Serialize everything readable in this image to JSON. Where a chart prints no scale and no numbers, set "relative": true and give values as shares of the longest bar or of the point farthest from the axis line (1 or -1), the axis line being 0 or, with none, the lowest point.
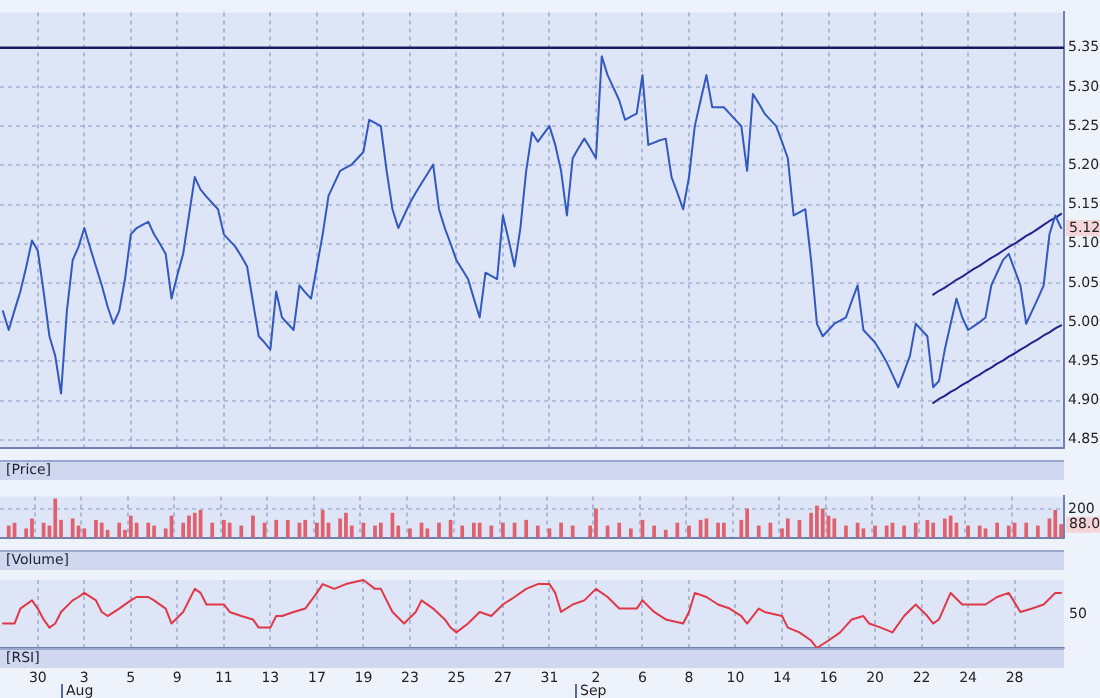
{
  "chart_data": [
    {
      "type": "line",
      "title": "[Price]",
      "categories": [
        null,
        null,
        null,
        null,
        null,
        null,
        "30",
        null,
        null,
        null,
        null,
        null,
        null,
        null,
        "3",
        null,
        null,
        null,
        null,
        null,
        null,
        null,
        "5",
        null,
        null,
        null,
        null,
        null,
        null,
        null,
        "9",
        null,
        null,
        null,
        null,
        null,
        null,
        null,
        "11",
        null,
        null,
        null,
        null,
        null,
        null,
        null,
        "13",
        null,
        null,
        null,
        null,
        null,
        null,
        null,
        "17",
        null,
        null,
        null,
        null,
        null,
        null,
        null,
        "19",
        null,
        null,
        null,
        null,
        null,
        null,
        null,
        "23",
        null,
        null,
        null,
        null,
        null,
        null,
        null,
        "25",
        null,
        null,
        null,
        null,
        null,
        null,
        null,
        "27",
        null,
        null,
        null,
        null,
        null,
        null,
        null,
        "31",
        null,
        null,
        null,
        null,
        null,
        null,
        null,
        "2",
        null,
        null,
        null,
        null,
        null,
        null,
        null,
        "6",
        null,
        null,
        null,
        null,
        null,
        null,
        null,
        "8",
        null,
        null,
        null,
        null,
        null,
        null,
        null,
        "10",
        null,
        null,
        null,
        null,
        null,
        null,
        null,
        "14",
        null,
        null,
        null,
        null,
        null,
        null,
        null,
        "16",
        null,
        null,
        null,
        null,
        null,
        null,
        null,
        "20",
        null,
        null,
        null,
        null,
        null,
        null,
        null,
        "22",
        null,
        null,
        null,
        null,
        null,
        null,
        null,
        "24",
        null,
        null,
        null,
        null,
        null,
        null,
        null,
        "28",
        null,
        null,
        null,
        null,
        null,
        null,
        null,
        null
      ],
      "ylim": [
        4.84,
        5.395
      ],
      "yticks": [
        4.85,
        {
          "value": 4.9,
          "label": "4.90"
        },
        4.95,
        {
          "value": 5,
          "label": "5.00"
        },
        5.05,
        {
          "value": 5.1,
          "label": "5.10"
        },
        5.15,
        {
          "value": 5.2,
          "label": "5.20"
        },
        5.25,
        {
          "value": 5.3,
          "label": "5.30"
        },
        5.35
      ],
      "grid": true,
      "tick_labels": "y",
      "series": [
        {
          "color": "#3358c0",
          "values": [
            5.014,
            4.99,
            5.015,
            5.039,
            5.07,
            5.104,
            5.091,
            5.039,
            4.982,
            4.957,
            4.909,
            5.014,
            5.079,
            5.096,
            5.12,
            5.095,
            5.071,
            5.047,
            5.02,
            4.998,
            5.014,
            5.055,
            5.112,
            5.12,
            5.124,
            5.128,
            5.112,
            5.1,
            5.087,
            5.03,
            5.06,
            5.087,
            5.136,
            5.185,
            5.169,
            5.16,
            5.152,
            5.144,
            5.112,
            5.104,
            5.096,
            5.084,
            5.071,
            5.026,
            4.982,
            4.974,
            4.965,
            5.039,
            5.006,
            4.998,
            4.99,
            5.047,
            5.038,
            5.03,
            5.071,
            5.112,
            5.161,
            5.177,
            5.193,
            5.197,
            5.201,
            5.209,
            5.217,
            5.258,
            5.254,
            5.25,
            5.193,
            5.144,
            5.12,
            5.136,
            5.152,
            5.165,
            5.177,
            5.189,
            5.201,
            5.144,
            5.12,
            5.1,
            5.079,
            5.067,
            5.055,
            5.03,
            5.006,
            5.063,
            5.059,
            5.055,
            5.136,
            5.104,
            5.071,
            5.12,
            5.193,
            5.242,
            5.23,
            5.24,
            5.25,
            5.226,
            5.193,
            5.136,
            5.209,
            5.222,
            5.234,
            5.222,
            5.209,
            5.339,
            5.315,
            5.299,
            5.283,
            5.258,
            5.262,
            5.266,
            5.315,
            5.226,
            5.229,
            5.232,
            5.234,
            5.185,
            5.165,
            5.144,
            5.185,
            5.25,
            5.283,
            5.315,
            5.274,
            5.274,
            5.274,
            5.266,
            5.258,
            5.25,
            5.193,
            5.291,
            5.279,
            5.266,
            5.258,
            5.25,
            5.23,
            5.209,
            5.136,
            5.14,
            5.144,
            5.079,
            4.998,
            4.982,
            4.99,
            4.998,
            5.002,
            5.006,
            5.027,
            5.047,
            4.99,
            4.982,
            4.974,
            4.962,
            4.949,
            4.933,
            4.917,
            4.937,
            4.957,
            4.998,
            4.99,
            4.982,
            4.917,
            4.925,
            4.965,
            4.998,
            5.03,
            5.006,
            4.99,
            4.995,
            5.0,
            5.006,
            5.047,
            5.063,
            5.079,
            5.087,
            5.067,
            5.047,
            4.998,
            5.014,
            5.03,
            5.047,
            5.112,
            5.136,
            5.12
          ]
        },
        {
          "color": "#22228c",
          "values": [
            null,
            null,
            null,
            null,
            null,
            null,
            null,
            null,
            null,
            null,
            null,
            null,
            null,
            null,
            null,
            null,
            null,
            null,
            null,
            null,
            null,
            null,
            null,
            null,
            null,
            null,
            null,
            null,
            null,
            null,
            null,
            null,
            null,
            null,
            null,
            null,
            null,
            null,
            null,
            null,
            null,
            null,
            null,
            null,
            null,
            null,
            null,
            null,
            null,
            null,
            null,
            null,
            null,
            null,
            null,
            null,
            null,
            null,
            null,
            null,
            null,
            null,
            null,
            null,
            null,
            null,
            null,
            null,
            null,
            null,
            null,
            null,
            null,
            null,
            null,
            null,
            null,
            null,
            null,
            null,
            null,
            null,
            null,
            null,
            null,
            null,
            null,
            null,
            null,
            null,
            null,
            null,
            null,
            null,
            null,
            null,
            null,
            null,
            null,
            null,
            null,
            null,
            null,
            null,
            null,
            null,
            null,
            null,
            null,
            null,
            null,
            null,
            null,
            null,
            null,
            null,
            null,
            null,
            null,
            null,
            null,
            null,
            null,
            null,
            null,
            null,
            null,
            null,
            null,
            null,
            null,
            null,
            null,
            null,
            null,
            null,
            null,
            null,
            null,
            null,
            null,
            null,
            null,
            null,
            null,
            null,
            null,
            null,
            null,
            null,
            null,
            null,
            null,
            null,
            null,
            null,
            null,
            null,
            null,
            null,
            5.035,
            5.04,
            5.044,
            5.049,
            5.054,
            5.058,
            5.063,
            5.068,
            5.072,
            5.077,
            5.082,
            5.086,
            5.091,
            5.096,
            5.1,
            5.105,
            5.11,
            5.114,
            5.119,
            5.124,
            5.129,
            5.133,
            5.138
          ]
        },
        {
          "color": "#22228c",
          "values": [
            null,
            null,
            null,
            null,
            null,
            null,
            null,
            null,
            null,
            null,
            null,
            null,
            null,
            null,
            null,
            null,
            null,
            null,
            null,
            null,
            null,
            null,
            null,
            null,
            null,
            null,
            null,
            null,
            null,
            null,
            null,
            null,
            null,
            null,
            null,
            null,
            null,
            null,
            null,
            null,
            null,
            null,
            null,
            null,
            null,
            null,
            null,
            null,
            null,
            null,
            null,
            null,
            null,
            null,
            null,
            null,
            null,
            null,
            null,
            null,
            null,
            null,
            null,
            null,
            null,
            null,
            null,
            null,
            null,
            null,
            null,
            null,
            null,
            null,
            null,
            null,
            null,
            null,
            null,
            null,
            null,
            null,
            null,
            null,
            null,
            null,
            null,
            null,
            null,
            null,
            null,
            null,
            null,
            null,
            null,
            null,
            null,
            null,
            null,
            null,
            null,
            null,
            null,
            null,
            null,
            null,
            null,
            null,
            null,
            null,
            null,
            null,
            null,
            null,
            null,
            null,
            null,
            null,
            null,
            null,
            null,
            null,
            null,
            null,
            null,
            null,
            null,
            null,
            null,
            null,
            null,
            null,
            null,
            null,
            null,
            null,
            null,
            null,
            null,
            null,
            null,
            null,
            null,
            null,
            null,
            null,
            null,
            null,
            null,
            null,
            null,
            null,
            null,
            null,
            null,
            null,
            null,
            null,
            null,
            null,
            4.897,
            4.902,
            4.906,
            4.911,
            4.915,
            4.92,
            4.924,
            4.929,
            4.933,
            4.938,
            4.942,
            4.947,
            4.951,
            4.956,
            4.96,
            4.965,
            4.969,
            4.974,
            4.978,
            4.983,
            4.987,
            4.992,
            4.996
          ]
        }
      ],
      "ref_lines": [
        {
          "axis": "y",
          "value": 5.35,
          "color": "#1a1a5e"
        }
      ],
      "annotations": [
        "5.12"
      ]
    },
    {
      "type": "bar",
      "title": "[Volume]",
      "categories": [
        null,
        null,
        null,
        null,
        null,
        null,
        "30",
        null,
        null,
        null,
        null,
        null,
        null,
        null,
        "3",
        null,
        null,
        null,
        null,
        null,
        null,
        null,
        "5",
        null,
        null,
        null,
        null,
        null,
        null,
        null,
        "9",
        null,
        null,
        null,
        null,
        null,
        null,
        null,
        "11",
        null,
        null,
        null,
        null,
        null,
        null,
        null,
        "13",
        null,
        null,
        null,
        null,
        null,
        null,
        null,
        "17",
        null,
        null,
        null,
        null,
        null,
        null,
        null,
        "19",
        null,
        null,
        null,
        null,
        null,
        null,
        null,
        "23",
        null,
        null,
        null,
        null,
        null,
        null,
        null,
        "25",
        null,
        null,
        null,
        null,
        null,
        null,
        null,
        "27",
        null,
        null,
        null,
        null,
        null,
        null,
        null,
        "31",
        null,
        null,
        null,
        null,
        null,
        null,
        null,
        "2",
        null,
        null,
        null,
        null,
        null,
        null,
        null,
        "6",
        null,
        null,
        null,
        null,
        null,
        null,
        null,
        "8",
        null,
        null,
        null,
        null,
        null,
        null,
        null,
        "10",
        null,
        null,
        null,
        null,
        null,
        null,
        null,
        "14",
        null,
        null,
        null,
        null,
        null,
        null,
        null,
        "16",
        null,
        null,
        null,
        null,
        null,
        null,
        null,
        "20",
        null,
        null,
        null,
        null,
        null,
        null,
        null,
        "22",
        null,
        null,
        null,
        null,
        null,
        null,
        null,
        "24",
        null,
        null,
        null,
        null,
        null,
        null,
        null,
        "28",
        null,
        null,
        null,
        null,
        null,
        null,
        null,
        null
      ],
      "ylim": [
        0,
        290
      ],
      "yticks": [
        0,
        200
      ],
      "grid": true,
      "tick_labels": "y",
      "series": [
        {
          "color": "#e0606e",
          "values": [
            null,
            80,
            100,
            null,
            60,
            130,
            null,
            100,
            80,
            270,
            120,
            null,
            130,
            80,
            60,
            null,
            120,
            100,
            50,
            null,
            100,
            50,
            150,
            100,
            null,
            100,
            80,
            null,
            60,
            150,
            null,
            100,
            150,
            170,
            190,
            null,
            100,
            null,
            120,
            100,
            null,
            80,
            null,
            150,
            null,
            100,
            null,
            120,
            null,
            120,
            null,
            100,
            120,
            null,
            100,
            190,
            100,
            null,
            130,
            170,
            80,
            null,
            100,
            null,
            80,
            100,
            null,
            170,
            80,
            null,
            60,
            null,
            100,
            60,
            null,
            100,
            null,
            120,
            null,
            80,
            null,
            100,
            100,
            null,
            80,
            null,
            100,
            null,
            100,
            null,
            120,
            null,
            80,
            null,
            60,
            null,
            100,
            null,
            80,
            null,
            null,
            80,
            200,
            null,
            80,
            null,
            100,
            null,
            60,
            null,
            120,
            null,
            80,
            null,
            50,
            null,
            100,
            null,
            80,
            null,
            120,
            130,
            null,
            100,
            100,
            null,
            null,
            120,
            200,
            null,
            80,
            null,
            100,
            null,
            60,
            130,
            null,
            120,
            null,
            170,
            220,
            200,
            150,
            130,
            null,
            80,
            null,
            100,
            60,
            null,
            80,
            null,
            80,
            100,
            null,
            80,
            null,
            100,
            null,
            120,
            100,
            null,
            130,
            150,
            100,
            null,
            80,
            null,
            80,
            60,
            null,
            100,
            null,
            80,
            100,
            null,
            100,
            null,
            80,
            null,
            130,
            190,
            90
          ]
        }
      ],
      "annotations": [
        "88.0"
      ]
    },
    {
      "type": "line",
      "title": "[RSI]",
      "relative": true,
      "categories": [
        null,
        null,
        null,
        null,
        null,
        null,
        "30",
        null,
        null,
        null,
        null,
        null,
        null,
        null,
        "3",
        null,
        null,
        null,
        null,
        null,
        null,
        null,
        "5",
        null,
        null,
        null,
        null,
        null,
        null,
        null,
        "9",
        null,
        null,
        null,
        null,
        null,
        null,
        null,
        "11",
        null,
        null,
        null,
        null,
        null,
        null,
        null,
        "13",
        null,
        null,
        null,
        null,
        null,
        null,
        null,
        "17",
        null,
        null,
        null,
        null,
        null,
        null,
        null,
        "19",
        null,
        null,
        null,
        null,
        null,
        null,
        null,
        "23",
        null,
        null,
        null,
        null,
        null,
        null,
        null,
        "25",
        null,
        null,
        null,
        null,
        null,
        null,
        null,
        "27",
        null,
        null,
        null,
        null,
        null,
        null,
        null,
        "31",
        null,
        null,
        null,
        null,
        null,
        null,
        null,
        "2",
        null,
        null,
        null,
        null,
        null,
        null,
        null,
        "6",
        null,
        null,
        null,
        null,
        null,
        null,
        null,
        "8",
        null,
        null,
        null,
        null,
        null,
        null,
        null,
        "10",
        null,
        null,
        null,
        null,
        null,
        null,
        null,
        "14",
        null,
        null,
        null,
        null,
        null,
        null,
        null,
        "16",
        null,
        null,
        null,
        null,
        null,
        null,
        null,
        "20",
        null,
        null,
        null,
        null,
        null,
        null,
        null,
        "22",
        null,
        null,
        null,
        null,
        null,
        null,
        null,
        "24",
        null,
        null,
        null,
        null,
        null,
        null,
        null,
        "28",
        null,
        null,
        null,
        null,
        null,
        null,
        null,
        null
      ],
      "grid": "x",
      "series": [
        {
          "color": "#e03848",
          "values": [
            0.36,
            null,
            0.36,
            0.58,
            null,
            0.7,
            0.58,
            0.42,
            0.3,
            0.36,
            0.53,
            null,
            0.7,
            0.75,
            0.81,
            null,
            0.7,
            0.53,
            0.47,
            null,
            0.58,
            null,
            0.7,
            0.75,
            null,
            0.75,
            0.7,
            null,
            0.58,
            0.36,
            null,
            0.53,
            null,
            0.87,
            0.81,
            0.64,
            null,
            null,
            0.64,
            0.53,
            null,
            0.47,
            null,
            0.42,
            0.3,
            null,
            0.3,
            0.47,
            0.47,
            null,
            0.53,
            null,
            0.58,
            null,
            0.81,
            0.94,
            null,
            0.87,
            null,
            0.94,
            null,
            null,
            1,
            null,
            0.87,
            0.87,
            null,
            0.53,
            null,
            0.36,
            null,
            0.53,
            0.7,
            null,
            0.58,
            null,
            0.42,
            0.3,
            0.23,
            null,
            0.36,
            null,
            0.53,
            null,
            0.47,
            null,
            0.64,
            null,
            0.75,
            null,
            0.87,
            null,
            0.94,
            null,
            0.94,
            0.81,
            0.53,
            null,
            0.64,
            null,
            0.7,
            null,
            0.87,
            null,
            0.75,
            null,
            0.58,
            null,
            null,
            0.58,
            0.7,
            null,
            0.53,
            null,
            0.42,
            null,
            null,
            0.36,
            0.53,
            0.81,
            null,
            0.75,
            null,
            0.64,
            null,
            0.58,
            null,
            0.47,
            0.36,
            null,
            0.58,
            0.53,
            null,
            null,
            0.47,
            0.3,
            null,
            0.23,
            null,
            0.11,
            0,
            null,
            0.11,
            null,
            0.23,
            null,
            0.42,
            null,
            0.47,
            0.36,
            null,
            0.3,
            null,
            0.23,
            null,
            0.47,
            null,
            0.64,
            null,
            0.47,
            0.36,
            0.42,
            null,
            0.81,
            null,
            0.64,
            null,
            0.64,
            null,
            0.64,
            null,
            0.75,
            null,
            0.81,
            null,
            0.53,
            null,
            0.58,
            null,
            0.64,
            null,
            0.81,
            0.81
          ]
        }
      ],
      "annotations": [
        "50",
        "Aug",
        "Sep"
      ]
    }
  ]
}
